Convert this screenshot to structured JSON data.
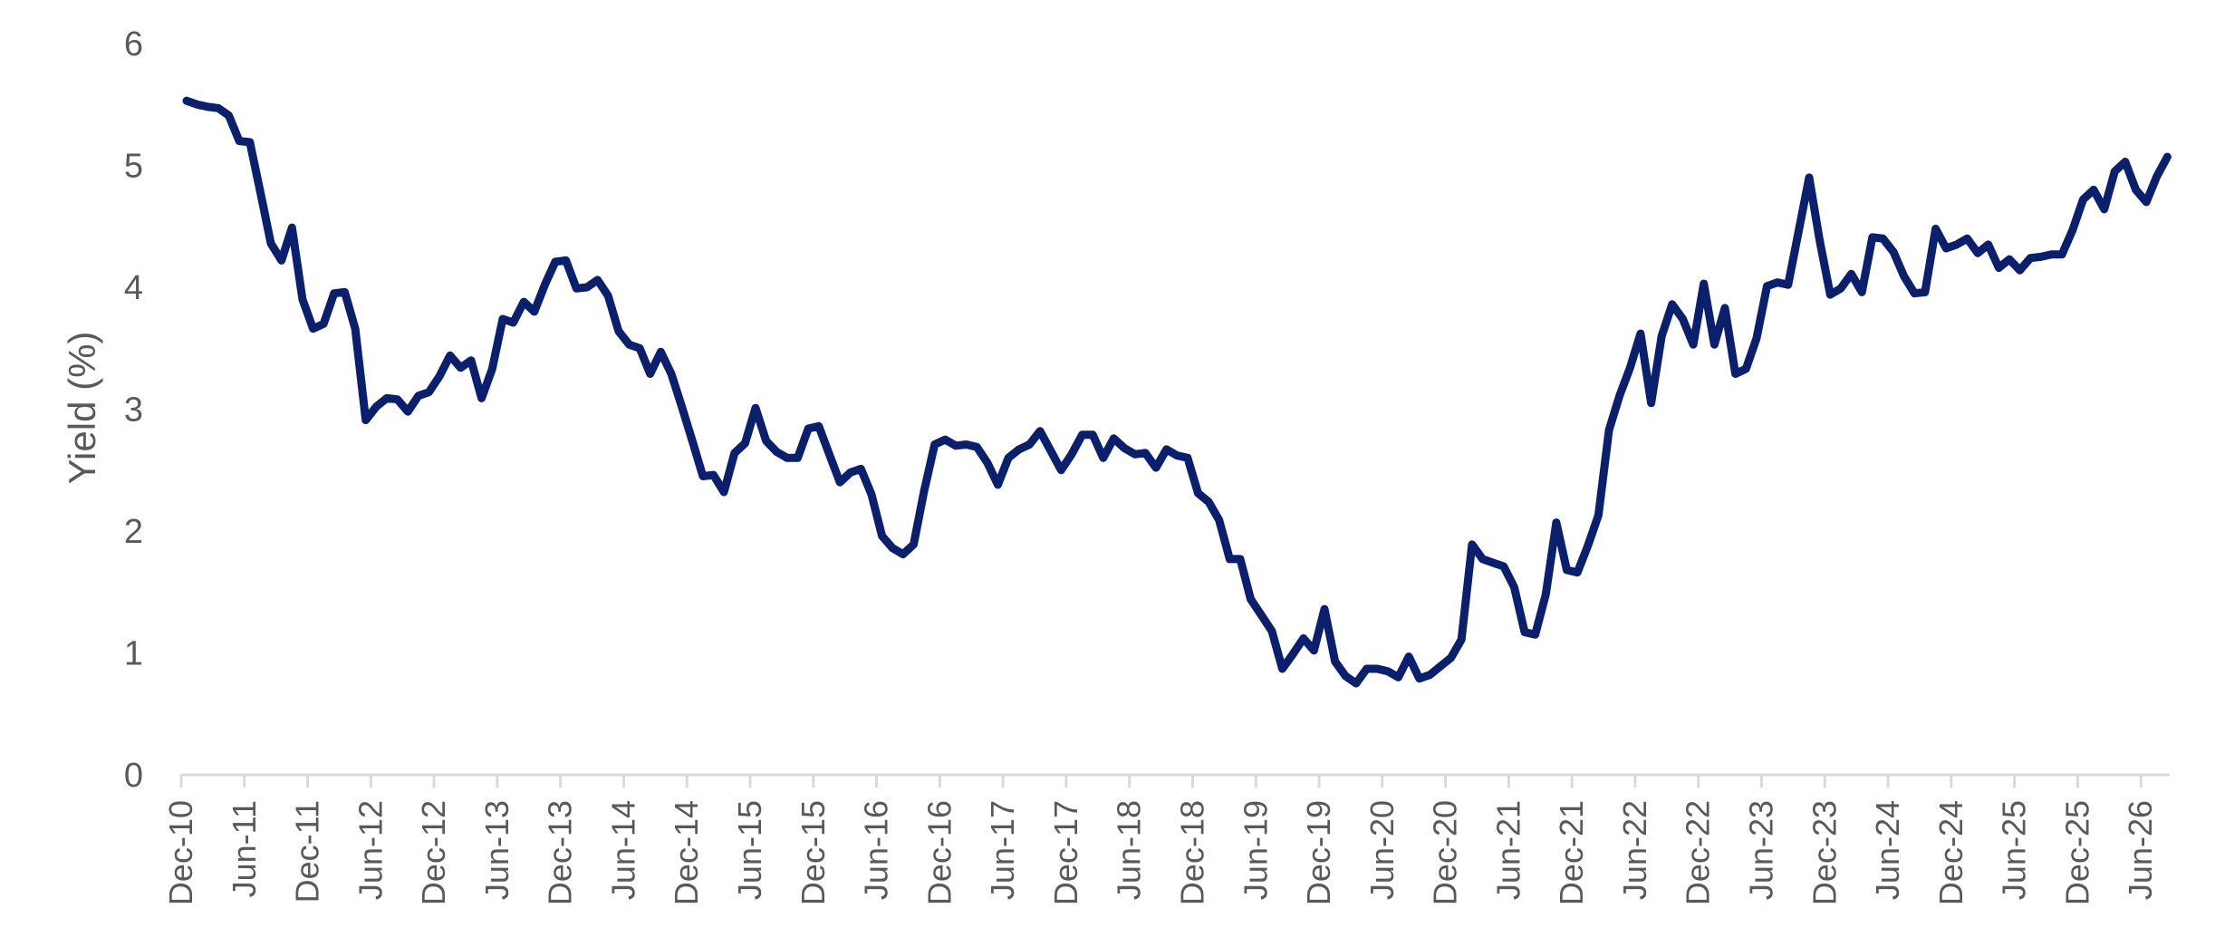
{
  "chart_data": {
    "type": "line",
    "title": "",
    "xlabel": "",
    "ylabel": "Yield (%)",
    "ylim": [
      0,
      6
    ],
    "yticks": [
      0,
      1,
      2,
      3,
      4,
      5,
      6
    ],
    "grid": false,
    "legend": "none",
    "x_start": "2010-12",
    "x_tick_labels": [
      "Dec-10",
      "Jun-11",
      "Dec-11",
      "Jun-12",
      "Dec-12",
      "Jun-13",
      "Dec-13",
      "Jun-14",
      "Dec-14",
      "Jun-15",
      "Dec-15",
      "Jun-16",
      "Dec-16",
      "Jun-17",
      "Dec-17",
      "Jun-18",
      "Dec-18",
      "Jun-19",
      "Dec-19",
      "Jun-20",
      "Dec-20",
      "Jun-21",
      "Dec-21",
      "Jun-22",
      "Dec-22",
      "Jun-23",
      "Dec-23",
      "Jun-24",
      "Dec-24",
      "Jun-25",
      "Dec-25",
      "Jun-26"
    ],
    "series": [
      {
        "color": "#0a1f6e",
        "values": [
          5.53,
          5.5,
          5.48,
          5.47,
          5.41,
          5.2,
          5.19,
          4.78,
          4.36,
          4.22,
          4.49,
          3.9,
          3.66,
          3.7,
          3.95,
          3.96,
          3.66,
          2.91,
          3.02,
          3.09,
          3.08,
          2.98,
          3.11,
          3.14,
          3.27,
          3.44,
          3.34,
          3.4,
          3.09,
          3.33,
          3.74,
          3.71,
          3.88,
          3.8,
          4.02,
          4.21,
          4.22,
          3.99,
          4.0,
          4.06,
          3.93,
          3.64,
          3.53,
          3.5,
          3.29,
          3.47,
          3.29,
          3.02,
          2.74,
          2.45,
          2.46,
          2.32,
          2.64,
          2.72,
          3.01,
          2.74,
          2.65,
          2.6,
          2.6,
          2.84,
          2.86,
          2.63,
          2.4,
          2.48,
          2.51,
          2.3,
          1.96,
          1.86,
          1.81,
          1.89,
          2.33,
          2.71,
          2.75,
          2.7,
          2.71,
          2.69,
          2.56,
          2.38,
          2.6,
          2.67,
          2.71,
          2.82,
          2.66,
          2.5,
          2.63,
          2.79,
          2.79,
          2.6,
          2.76,
          2.68,
          2.63,
          2.64,
          2.52,
          2.67,
          2.62,
          2.6,
          2.31,
          2.24,
          2.09,
          1.77,
          1.77,
          1.44,
          1.31,
          1.18,
          0.87,
          0.99,
          1.12,
          1.02,
          1.36,
          0.93,
          0.81,
          0.75,
          0.87,
          0.87,
          0.85,
          0.8,
          0.97,
          0.79,
          0.82,
          0.89,
          0.96,
          1.11,
          1.89,
          1.77,
          1.74,
          1.71,
          1.54,
          1.17,
          1.15,
          1.48,
          2.07,
          1.68,
          1.66,
          1.88,
          2.13,
          2.83,
          3.11,
          3.34,
          3.62,
          3.05,
          3.6,
          3.86,
          3.74,
          3.53,
          4.03,
          3.53,
          3.83,
          3.29,
          3.33,
          3.58,
          4.01,
          4.04,
          4.02,
          4.46,
          4.9,
          4.38,
          3.94,
          3.99,
          4.11,
          3.96,
          4.41,
          4.4,
          4.29,
          4.09,
          3.95,
          3.96,
          4.48,
          4.32,
          4.35,
          4.4,
          4.28,
          4.35,
          4.16,
          4.23,
          4.14,
          4.24,
          4.25,
          4.27,
          4.27,
          4.47,
          4.72,
          4.8,
          4.64,
          4.95,
          5.03,
          4.8,
          4.7,
          4.91,
          5.07
        ]
      }
    ]
  }
}
